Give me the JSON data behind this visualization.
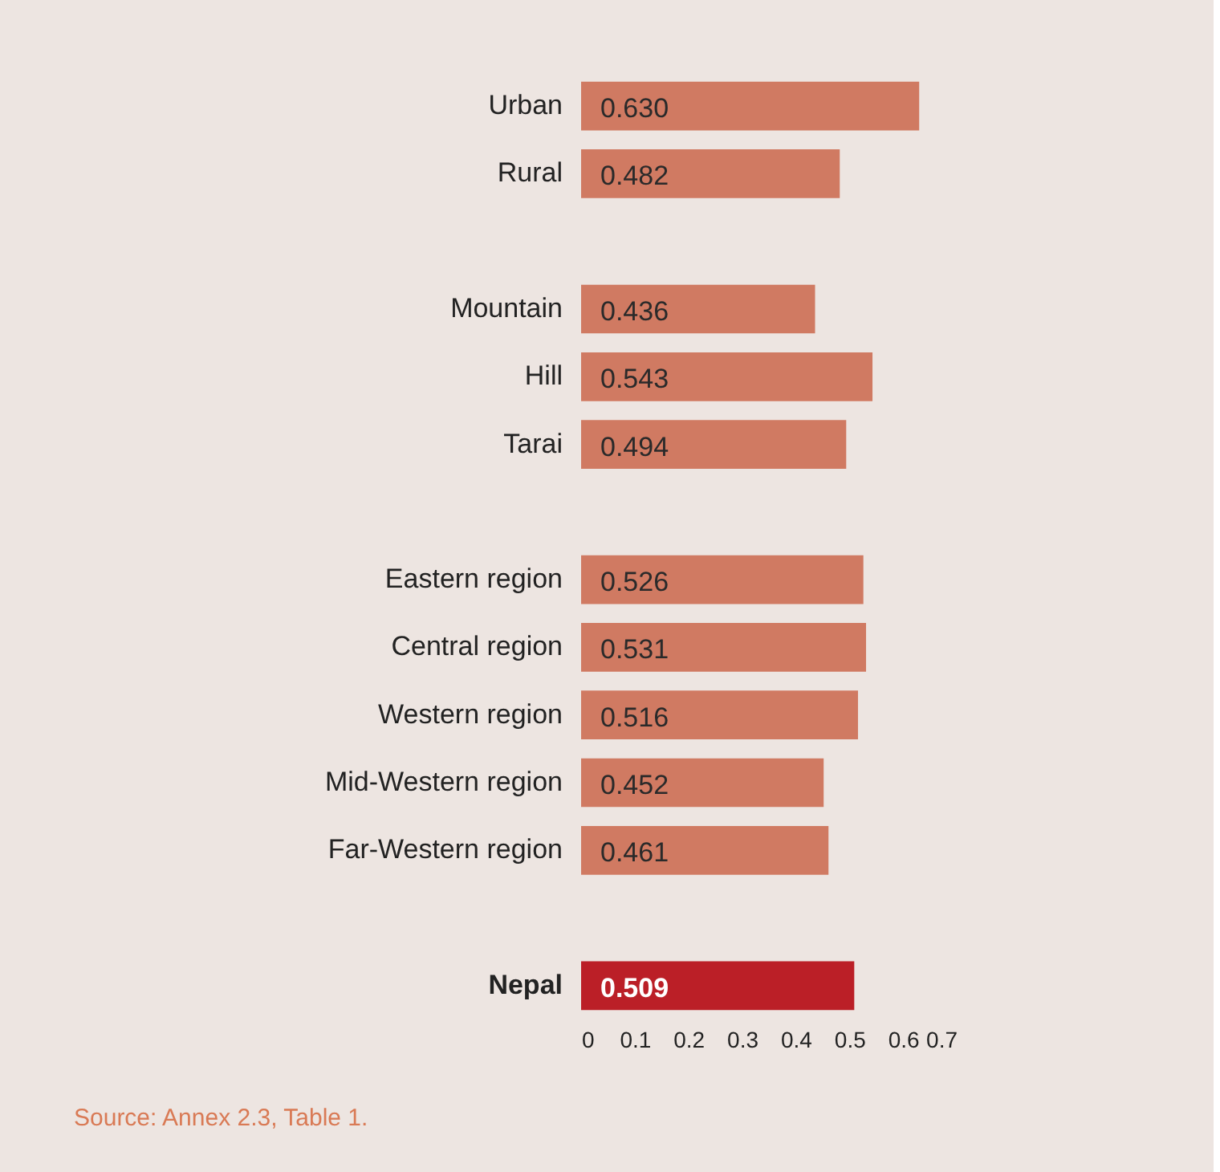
{
  "chart_data": {
    "type": "bar",
    "orientation": "horizontal",
    "categories": [
      "Urban",
      "Rural",
      null,
      "Mountain",
      "Hill",
      "Tarai",
      null,
      "Eastern region",
      "Central region",
      "Western region",
      "Mid-Western region",
      "Far-Western region",
      null,
      "Nepal"
    ],
    "values": [
      0.63,
      0.482,
      null,
      0.436,
      0.543,
      0.494,
      null,
      0.526,
      0.531,
      0.516,
      0.452,
      0.461,
      null,
      0.509
    ],
    "value_labels": [
      "0.630",
      "0.482",
      null,
      "0.436",
      "0.543",
      "0.494",
      null,
      "0.526",
      "0.531",
      "0.516",
      "0.452",
      "0.461",
      null,
      "0.509"
    ],
    "colors": [
      "#d07a62",
      "#d07a62",
      "#d07a62",
      "#d07a62",
      "#d07a62",
      "#d07a62",
      "#d07a62",
      "#d07a62",
      "#d07a62",
      "#d07a62",
      "#d07a62",
      "#d07a62",
      "#d07a62",
      "#bb1f27"
    ],
    "xlim": [
      0,
      0.7
    ],
    "xticks": [
      0,
      0.1,
      0.2,
      0.3,
      0.4,
      0.5,
      0.6,
      0.7
    ],
    "grid": false,
    "annotations": [
      "Source: Annex 2.3, Table 1."
    ]
  }
}
